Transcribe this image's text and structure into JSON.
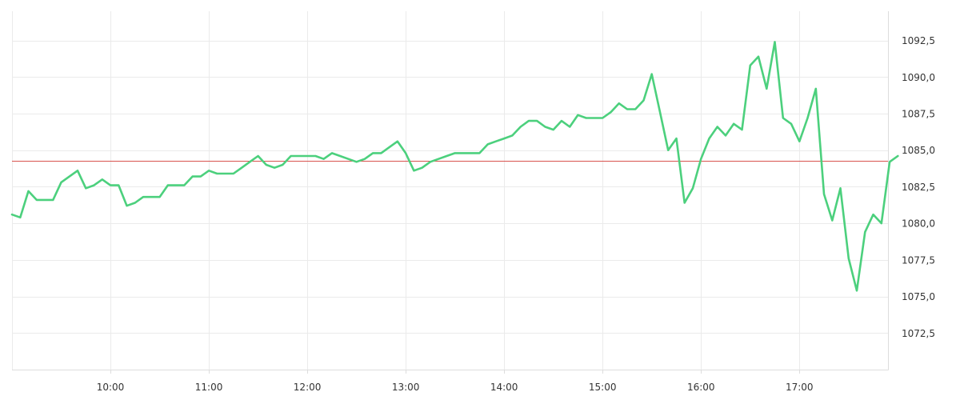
{
  "chart_data": {
    "type": "line",
    "title": "",
    "xlabel": "",
    "ylabel": "",
    "x_range": [
      "09:00",
      "17:54"
    ],
    "ylim": [
      1070.0,
      1094.5
    ],
    "grid": true,
    "legend": "none",
    "x_ticks": [
      "10:00",
      "11:00",
      "12:00",
      "13:00",
      "14:00",
      "15:00",
      "16:00",
      "17:00"
    ],
    "y_ticks": [
      "1072,5",
      "1075,0",
      "1077,5",
      "1080,0",
      "1082,5",
      "1085,0",
      "1087,5",
      "1090,0",
      "1092,5"
    ],
    "reference_line": {
      "value": 1084.3,
      "color": "#d9534f"
    },
    "series": [
      {
        "color": "#4cd07d",
        "points": [
          [
            "09:00",
            1080.6
          ],
          [
            "09:05",
            1080.4
          ],
          [
            "09:10",
            1082.2
          ],
          [
            "09:15",
            1081.6
          ],
          [
            "09:20",
            1081.6
          ],
          [
            "09:25",
            1081.6
          ],
          [
            "09:30",
            1082.8
          ],
          [
            "09:35",
            1083.2
          ],
          [
            "09:40",
            1083.6
          ],
          [
            "09:45",
            1082.4
          ],
          [
            "09:50",
            1082.6
          ],
          [
            "09:55",
            1083.0
          ],
          [
            "10:00",
            1082.6
          ],
          [
            "10:05",
            1082.6
          ],
          [
            "10:10",
            1081.2
          ],
          [
            "10:15",
            1081.4
          ],
          [
            "10:20",
            1081.8
          ],
          [
            "10:25",
            1081.8
          ],
          [
            "10:30",
            1081.8
          ],
          [
            "10:35",
            1082.6
          ],
          [
            "10:40",
            1082.6
          ],
          [
            "10:45",
            1082.6
          ],
          [
            "10:50",
            1083.2
          ],
          [
            "10:55",
            1083.2
          ],
          [
            "11:00",
            1083.6
          ],
          [
            "11:05",
            1083.4
          ],
          [
            "11:10",
            1083.4
          ],
          [
            "11:15",
            1083.4
          ],
          [
            "11:20",
            1083.8
          ],
          [
            "11:25",
            1084.2
          ],
          [
            "11:30",
            1084.6
          ],
          [
            "11:35",
            1084.0
          ],
          [
            "11:40",
            1083.8
          ],
          [
            "11:45",
            1084.0
          ],
          [
            "11:50",
            1084.6
          ],
          [
            "11:55",
            1084.6
          ],
          [
            "12:00",
            1084.6
          ],
          [
            "12:05",
            1084.6
          ],
          [
            "12:10",
            1084.4
          ],
          [
            "12:15",
            1084.8
          ],
          [
            "12:20",
            1084.6
          ],
          [
            "12:25",
            1084.4
          ],
          [
            "12:30",
            1084.2
          ],
          [
            "12:35",
            1084.4
          ],
          [
            "12:40",
            1084.8
          ],
          [
            "12:45",
            1084.8
          ],
          [
            "12:50",
            1085.2
          ],
          [
            "12:55",
            1085.6
          ],
          [
            "13:00",
            1084.8
          ],
          [
            "13:05",
            1083.6
          ],
          [
            "13:10",
            1083.8
          ],
          [
            "13:15",
            1084.2
          ],
          [
            "13:20",
            1084.4
          ],
          [
            "13:25",
            1084.6
          ],
          [
            "13:30",
            1084.8
          ],
          [
            "13:35",
            1084.8
          ],
          [
            "13:40",
            1084.8
          ],
          [
            "13:45",
            1084.8
          ],
          [
            "13:50",
            1085.4
          ],
          [
            "13:55",
            1085.6
          ],
          [
            "14:00",
            1085.8
          ],
          [
            "14:05",
            1086.0
          ],
          [
            "14:10",
            1086.6
          ],
          [
            "14:15",
            1087.0
          ],
          [
            "14:20",
            1087.0
          ],
          [
            "14:25",
            1086.6
          ],
          [
            "14:30",
            1086.4
          ],
          [
            "14:35",
            1087.0
          ],
          [
            "14:40",
            1086.6
          ],
          [
            "14:45",
            1087.4
          ],
          [
            "14:50",
            1087.2
          ],
          [
            "14:55",
            1087.2
          ],
          [
            "15:00",
            1087.2
          ],
          [
            "15:05",
            1087.6
          ],
          [
            "15:10",
            1088.2
          ],
          [
            "15:15",
            1087.8
          ],
          [
            "15:20",
            1087.8
          ],
          [
            "15:25",
            1088.4
          ],
          [
            "15:30",
            1090.2
          ],
          [
            "15:35",
            1087.6
          ],
          [
            "15:40",
            1085.0
          ],
          [
            "15:45",
            1085.8
          ],
          [
            "15:50",
            1081.4
          ],
          [
            "15:55",
            1082.4
          ],
          [
            "16:00",
            1084.4
          ],
          [
            "16:05",
            1085.8
          ],
          [
            "16:10",
            1086.6
          ],
          [
            "16:15",
            1086.0
          ],
          [
            "16:20",
            1086.8
          ],
          [
            "16:25",
            1086.4
          ],
          [
            "16:30",
            1090.8
          ],
          [
            "16:35",
            1091.4
          ],
          [
            "16:40",
            1089.2
          ],
          [
            "16:45",
            1092.4
          ],
          [
            "16:50",
            1087.2
          ],
          [
            "16:55",
            1086.8
          ],
          [
            "17:00",
            1085.6
          ],
          [
            "17:05",
            1087.2
          ],
          [
            "17:10",
            1089.2
          ],
          [
            "17:15",
            1082.0
          ],
          [
            "17:20",
            1080.2
          ],
          [
            "17:25",
            1082.4
          ],
          [
            "17:30",
            1077.6
          ],
          [
            "17:35",
            1075.4
          ],
          [
            "17:40",
            1079.4
          ],
          [
            "17:45",
            1080.6
          ],
          [
            "17:50",
            1080.0
          ],
          [
            "17:55",
            1084.2
          ],
          [
            "18:00",
            1084.6
          ]
        ]
      }
    ]
  }
}
